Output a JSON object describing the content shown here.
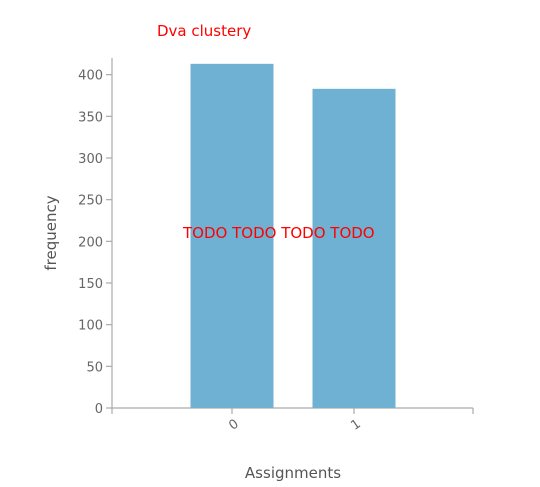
{
  "overlay": {
    "title": "Dva clustery",
    "placeholder": "TODO TODO TODO TODO"
  },
  "colors": {
    "bar": "#6fb1d2",
    "axis": "#aaaaaa",
    "tick_text": "#666666",
    "label_text": "#555555",
    "overlay_text": "#ff0000"
  },
  "chart_data": {
    "type": "bar",
    "categories": [
      "0",
      "1"
    ],
    "values": [
      413,
      383
    ],
    "xlabel": "Assignments",
    "ylabel": "frequency",
    "ylim": [
      0,
      420
    ],
    "yticks": [
      0,
      50,
      100,
      150,
      200,
      250,
      300,
      350,
      400
    ],
    "grid": false
  }
}
